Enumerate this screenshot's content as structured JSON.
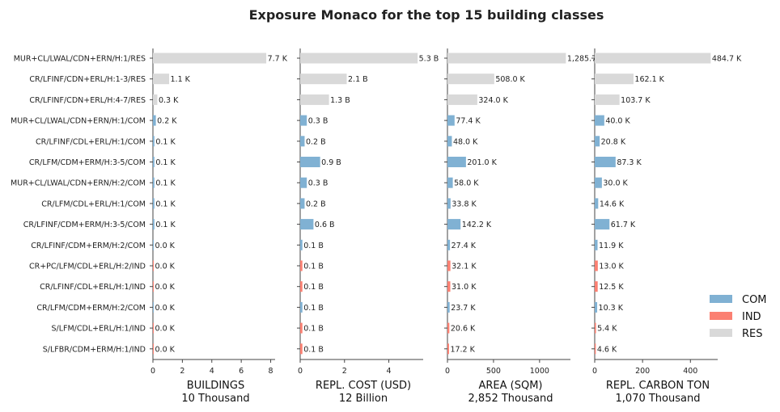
{
  "colors": {
    "COM": "#80b1d3",
    "IND": "#fb8072",
    "RES": "#d9d9d9",
    "axis": "#444444"
  },
  "chart_data": {
    "type": "bar",
    "orientation": "horizontal",
    "title": "Exposure Monaco for the top 15 building classes",
    "categories": [
      "MUR+CL/LWAL/CDN+ERN/H:1/RES",
      "CR/LFINF/CDN+ERL/H:1-3/RES",
      "CR/LFINF/CDN+ERL/H:4-7/RES",
      "MUR+CL/LWAL/CDN+ERN/H:1/COM",
      "CR/LFINF/CDL+ERL/H:1/COM",
      "CR/LFM/CDM+ERM/H:3-5/COM",
      "MUR+CL/LWAL/CDN+ERN/H:2/COM",
      "CR/LFM/CDL+ERL/H:1/COM",
      "CR/LFINF/CDM+ERM/H:3-5/COM",
      "CR/LFINF/CDM+ERM/H:2/COM",
      "CR+PC/LFM/CDL+ERL/H:2/IND",
      "CR/LFINF/CDL+ERL/H:1/IND",
      "CR/LFM/CDM+ERM/H:2/COM",
      "S/LFM/CDL+ERL/H:1/IND",
      "S/LFBR/CDM+ERM/H:1/IND"
    ],
    "occupancy": [
      "RES",
      "RES",
      "RES",
      "COM",
      "COM",
      "COM",
      "COM",
      "COM",
      "COM",
      "COM",
      "IND",
      "IND",
      "COM",
      "IND",
      "IND"
    ],
    "legend": {
      "position": "right",
      "entries": [
        "COM",
        "IND",
        "RES"
      ]
    },
    "panels": [
      {
        "xlabel": "BUILDINGS",
        "total": "10 Thousand",
        "xlim": [
          0,
          8.3
        ],
        "ticks": [
          0,
          2,
          4,
          6,
          8
        ],
        "values": [
          7.7,
          1.1,
          0.3,
          0.2,
          0.1,
          0.1,
          0.1,
          0.1,
          0.1,
          0.04,
          0.04,
          0.03,
          0.03,
          0.02,
          0.02
        ],
        "labels": [
          "7.7 K",
          "1.1 K",
          "0.3 K",
          "0.2 K",
          "0.1 K",
          "0.1 K",
          "0.1 K",
          "0.1 K",
          "0.1 K",
          "0.0 K",
          "0.0 K",
          "0.0 K",
          "0.0 K",
          "0.0 K",
          "0.0 K"
        ]
      },
      {
        "xlabel": "REPL. COST (USD)",
        "total": "12 Billion",
        "xlim": [
          0,
          5.55
        ],
        "ticks": [
          0,
          2,
          4
        ],
        "values": [
          5.3,
          2.1,
          1.3,
          0.3,
          0.2,
          0.9,
          0.3,
          0.2,
          0.6,
          0.1,
          0.1,
          0.1,
          0.1,
          0.1,
          0.1
        ],
        "labels": [
          "5.3 B",
          "2.1 B",
          "1.3 B",
          "0.3 B",
          "0.2 B",
          "0.9 B",
          "0.3 B",
          "0.2 B",
          "0.6 B",
          "0.1 B",
          "0.1 B",
          "0.1 B",
          "0.1 B",
          "0.1 B",
          "0.1 B"
        ]
      },
      {
        "xlabel": "AREA (SQM)",
        "total": "2,852 Thousand",
        "xlim": [
          0,
          1335
        ],
        "ticks": [
          0,
          500,
          1000
        ],
        "values": [
          1285.7,
          508.0,
          324.0,
          77.4,
          48.0,
          201.0,
          58.0,
          33.8,
          142.2,
          27.4,
          32.1,
          31.0,
          23.7,
          20.6,
          17.2
        ],
        "labels": [
          "1,285.7",
          "508.0 K",
          "324.0 K",
          "77.4 K",
          "48.0 K",
          "201.0 K",
          "58.0 K",
          "33.8 K",
          "142.2 K",
          "27.4 K",
          "32.1 K",
          "31.0 K",
          "23.7 K",
          "20.6 K",
          "17.2 K"
        ]
      },
      {
        "xlabel": "REPL. CARBON TON",
        "total": "1,070 Thousand",
        "xlim": [
          0,
          514
        ],
        "ticks": [
          0,
          200,
          400
        ],
        "values": [
          484.7,
          162.1,
          103.7,
          40.0,
          20.8,
          87.3,
          30.0,
          14.6,
          61.7,
          11.9,
          13.0,
          12.5,
          10.3,
          5.4,
          4.6
        ],
        "labels": [
          "484.7 K",
          "162.1 K",
          "103.7 K",
          "40.0 K",
          "20.8 K",
          "87.3 K",
          "30.0 K",
          "14.6 K",
          "61.7 K",
          "11.9 K",
          "13.0 K",
          "12.5 K",
          "10.3 K",
          "5.4 K",
          "4.6 K"
        ]
      }
    ]
  }
}
